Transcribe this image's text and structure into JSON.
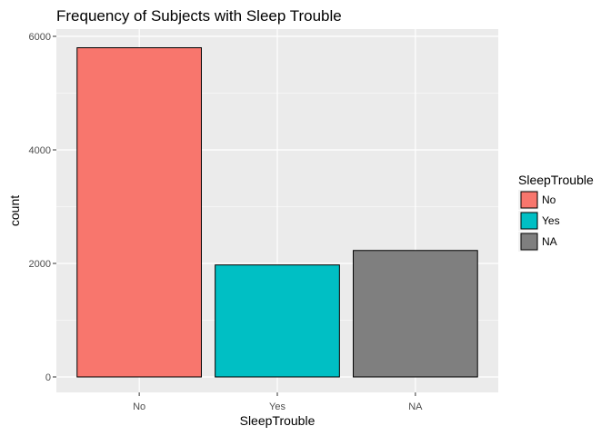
{
  "chart_data": {
    "type": "bar",
    "title": "Frequency of Subjects with Sleep Trouble",
    "xlabel": "SleepTrouble",
    "ylabel": "count",
    "categories": [
      "No",
      "Yes",
      "NA"
    ],
    "values": [
      5799,
      1973,
      2228
    ],
    "colors": [
      "#F8766D",
      "#00BFC4",
      "#7F7F7F"
    ],
    "ylim": [
      0,
      6100
    ],
    "yticks": [
      0,
      2000,
      4000,
      6000
    ],
    "grid": true,
    "legend": {
      "title": "SleepTrouble",
      "position": "right",
      "entries": [
        "No",
        "Yes",
        "NA"
      ]
    },
    "panel_background": "#EBEBEB",
    "grid_color": "#FFFFFF"
  }
}
